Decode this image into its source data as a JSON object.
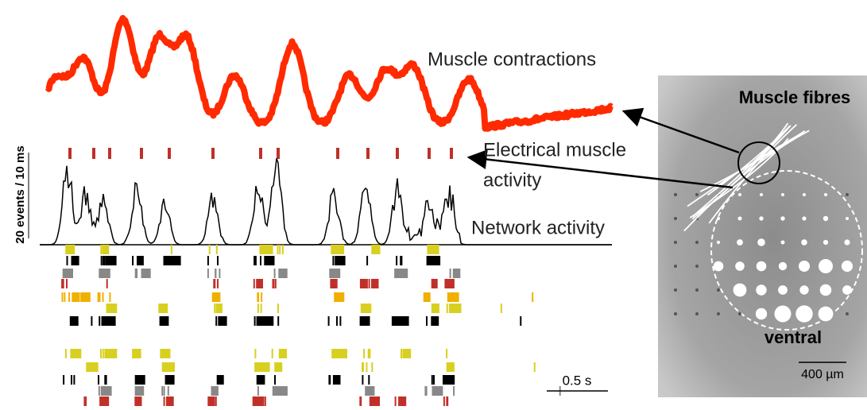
{
  "labels": {
    "muscle_contractions": "Muscle contractions",
    "electrical_line1": "Electrical muscle",
    "electrical_line2": "activity",
    "network_activity": "Network activity",
    "y_scale": "20 events / 10 ms",
    "time_scale": "0.5 s",
    "muscle_fibres": "Muscle fibres",
    "ventral": "ventral",
    "space_scale": "400 µm"
  }
}
